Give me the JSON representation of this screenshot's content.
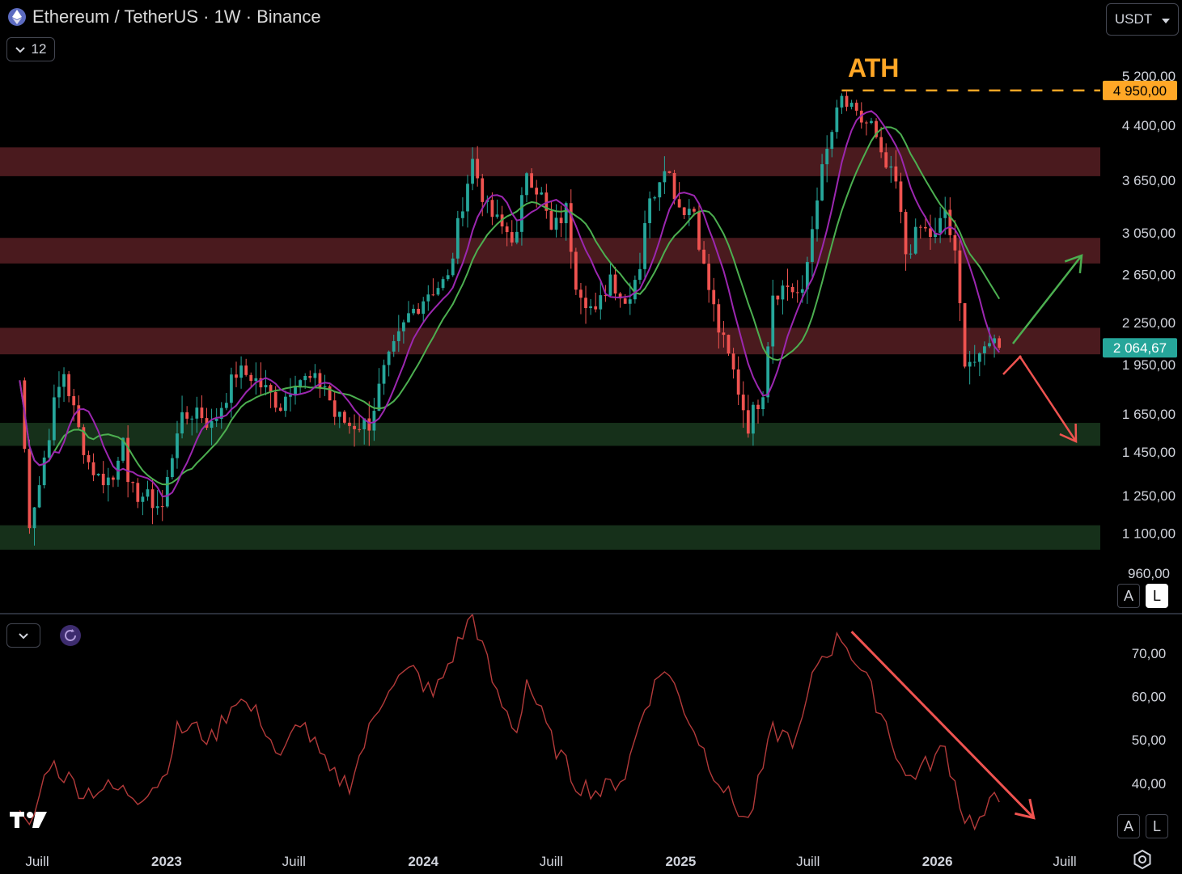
{
  "header": {
    "title": "Ethereum / TetherUS · 1W · Binance",
    "interval_count": "12",
    "currency": "USDT"
  },
  "annotations": {
    "ath_label": "ATH",
    "ath_price": "4 950,00",
    "last_price": "2 064,67"
  },
  "scale_buttons": {
    "auto": "A",
    "log": "L"
  },
  "colors": {
    "up": "#26a69a",
    "down": "#ef5350",
    "ma_fast": "#9c27b0",
    "ma_slow": "#4caf50",
    "resistance_zone": "#4a1a1e",
    "support_zone": "#16301a",
    "ath": "#ffa726",
    "rsi": "#b33a3a",
    "last_price_bg": "#26a69a"
  },
  "chart_data": [
    {
      "type": "candlestick",
      "title": "Ethereum / TetherUS · 1W · Binance",
      "scale": "log",
      "y_ticks": [
        "5 200,00",
        "4 400,00",
        "3 650,00",
        "3 050,00",
        "2 650,00",
        "2 250,00",
        "1 950,00",
        "1 650,00",
        "1 450,00",
        "1 250,00",
        "1 100,00",
        "960,00"
      ],
      "y_tick_values": [
        5200,
        4400,
        3650,
        3050,
        2650,
        2250,
        1950,
        1650,
        1450,
        1250,
        1100,
        960
      ],
      "x_ticks": [
        "Juill",
        "2023",
        "Juill",
        "2024",
        "Juill",
        "2025",
        "Juill",
        "2026",
        "Juill"
      ],
      "x_tick_dates": [
        "2022-07-01",
        "2023-01-01",
        "2023-07-01",
        "2024-01-01",
        "2024-07-01",
        "2025-01-01",
        "2025-07-01",
        "2026-01-01",
        "2026-07-01"
      ],
      "ylim": [
        890,
        5500
      ],
      "zones": [
        {
          "kind": "resistance",
          "low": 3700,
          "high": 4080
        },
        {
          "kind": "resistance",
          "low": 2750,
          "high": 3000
        },
        {
          "kind": "resistance",
          "low": 2020,
          "high": 2210
        },
        {
          "kind": "support",
          "low": 1480,
          "high": 1600
        },
        {
          "kind": "support",
          "low": 1040,
          "high": 1130
        }
      ],
      "ath_level": 4950,
      "close_anchors": [
        [
          "2022-06-06",
          1850
        ],
        [
          "2022-06-20",
          1150
        ],
        [
          "2022-07-04",
          1300
        ],
        [
          "2022-07-25",
          1700
        ],
        [
          "2022-08-08",
          1900
        ],
        [
          "2022-08-29",
          1560
        ],
        [
          "2022-09-12",
          1400
        ],
        [
          "2022-09-26",
          1330
        ],
        [
          "2022-10-17",
          1320
        ],
        [
          "2022-10-31",
          1570
        ],
        [
          "2022-11-07",
          1270
        ],
        [
          "2022-11-28",
          1250
        ],
        [
          "2022-12-26",
          1200
        ],
        [
          "2023-01-16",
          1580
        ],
        [
          "2023-02-13",
          1680
        ],
        [
          "2023-03-06",
          1580
        ],
        [
          "2023-04-10",
          1900
        ],
        [
          "2023-05-01",
          1880
        ],
        [
          "2023-06-12",
          1700
        ],
        [
          "2023-07-03",
          1870
        ],
        [
          "2023-08-14",
          1820
        ],
        [
          "2023-08-28",
          1640
        ],
        [
          "2023-09-18",
          1590
        ],
        [
          "2023-10-16",
          1600
        ],
        [
          "2023-11-06",
          1900
        ],
        [
          "2023-12-11",
          2300
        ],
        [
          "2024-01-08",
          2500
        ],
        [
          "2024-02-05",
          2600
        ],
        [
          "2024-02-26",
          3400
        ],
        [
          "2024-03-11",
          3900
        ],
        [
          "2024-04-01",
          3300
        ],
        [
          "2024-04-22",
          3100
        ],
        [
          "2024-05-13",
          3000
        ],
        [
          "2024-05-27",
          3800
        ],
        [
          "2024-06-17",
          3450
        ],
        [
          "2024-07-01",
          3050
        ],
        [
          "2024-07-22",
          3300
        ],
        [
          "2024-08-05",
          2600
        ],
        [
          "2024-09-02",
          2300
        ],
        [
          "2024-09-23",
          2650
        ],
        [
          "2024-10-14",
          2400
        ],
        [
          "2024-11-04",
          2750
        ],
        [
          "2024-11-11",
          3200
        ],
        [
          "2024-12-09",
          3900
        ],
        [
          "2024-12-30",
          3350
        ],
        [
          "2025-01-20",
          3300
        ],
        [
          "2025-02-03",
          2700
        ],
        [
          "2025-02-24",
          2200
        ],
        [
          "2025-03-17",
          1900
        ],
        [
          "2025-04-07",
          1590
        ],
        [
          "2025-04-28",
          1800
        ],
        [
          "2025-05-12",
          2500
        ],
        [
          "2025-06-02",
          2550
        ],
        [
          "2025-06-23",
          2450
        ],
        [
          "2025-07-14",
          3500
        ],
        [
          "2025-08-04",
          4300
        ],
        [
          "2025-08-18",
          4800
        ],
        [
          "2025-09-08",
          4500
        ],
        [
          "2025-09-29",
          4400
        ],
        [
          "2025-10-13",
          3900
        ],
        [
          "2025-11-03",
          3600
        ],
        [
          "2025-11-17",
          2850
        ],
        [
          "2025-12-08",
          3100
        ],
        [
          "2025-12-29",
          3000
        ],
        [
          "2026-01-12",
          3300
        ],
        [
          "2026-01-26",
          2800
        ],
        [
          "2026-02-09",
          2000
        ],
        [
          "2026-03-02",
          1960
        ],
        [
          "2026-03-16",
          2150
        ],
        [
          "2026-03-30",
          2064.67
        ]
      ]
    },
    {
      "type": "line",
      "title": "",
      "y_ticks": [
        "70,00",
        "60,00",
        "50,00",
        "40,00"
      ],
      "y_tick_values": [
        70,
        60,
        50,
        40
      ],
      "ylim": [
        29,
        79
      ],
      "rsi_anchors": [
        [
          "2022-06-06",
          32
        ],
        [
          "2022-06-20",
          29
        ],
        [
          "2022-07-18",
          45
        ],
        [
          "2022-08-08",
          42
        ],
        [
          "2022-09-05",
          38
        ],
        [
          "2022-10-03",
          39
        ],
        [
          "2022-11-07",
          38
        ],
        [
          "2022-11-21",
          37
        ],
        [
          "2022-12-26",
          41
        ],
        [
          "2023-01-16",
          52
        ],
        [
          "2023-02-06",
          53
        ],
        [
          "2023-03-06",
          50
        ],
        [
          "2023-04-10",
          60
        ],
        [
          "2023-05-15",
          55
        ],
        [
          "2023-06-12",
          45
        ],
        [
          "2023-07-10",
          55
        ],
        [
          "2023-08-21",
          42
        ],
        [
          "2023-09-18",
          40
        ],
        [
          "2023-10-23",
          55
        ],
        [
          "2023-11-13",
          63
        ],
        [
          "2023-12-18",
          66
        ],
        [
          "2024-01-15",
          60
        ],
        [
          "2024-02-19",
          72
        ],
        [
          "2024-03-11",
          79
        ],
        [
          "2024-04-15",
          60
        ],
        [
          "2024-05-13",
          52
        ],
        [
          "2024-05-27",
          64
        ],
        [
          "2024-07-01",
          50
        ],
        [
          "2024-08-05",
          40
        ],
        [
          "2024-09-09",
          38
        ],
        [
          "2024-10-14",
          42
        ],
        [
          "2024-11-11",
          58
        ],
        [
          "2024-12-09",
          67
        ],
        [
          "2025-01-13",
          55
        ],
        [
          "2025-02-10",
          45
        ],
        [
          "2025-03-10",
          37
        ],
        [
          "2025-04-07",
          31
        ],
        [
          "2025-05-12",
          52
        ],
        [
          "2025-06-16",
          50
        ],
        [
          "2025-07-14",
          68
        ],
        [
          "2025-08-18",
          74
        ],
        [
          "2025-09-15",
          66
        ],
        [
          "2025-10-20",
          54
        ],
        [
          "2025-11-17",
          41
        ],
        [
          "2025-12-15",
          44
        ],
        [
          "2026-01-12",
          48
        ],
        [
          "2026-02-09",
          32
        ],
        [
          "2026-03-02",
          31
        ],
        [
          "2026-03-23",
          36
        ],
        [
          "2026-03-30",
          36
        ]
      ],
      "trendline": [
        [
          "2025-09-01",
          75
        ],
        [
          "2026-05-18",
          32
        ]
      ]
    }
  ]
}
